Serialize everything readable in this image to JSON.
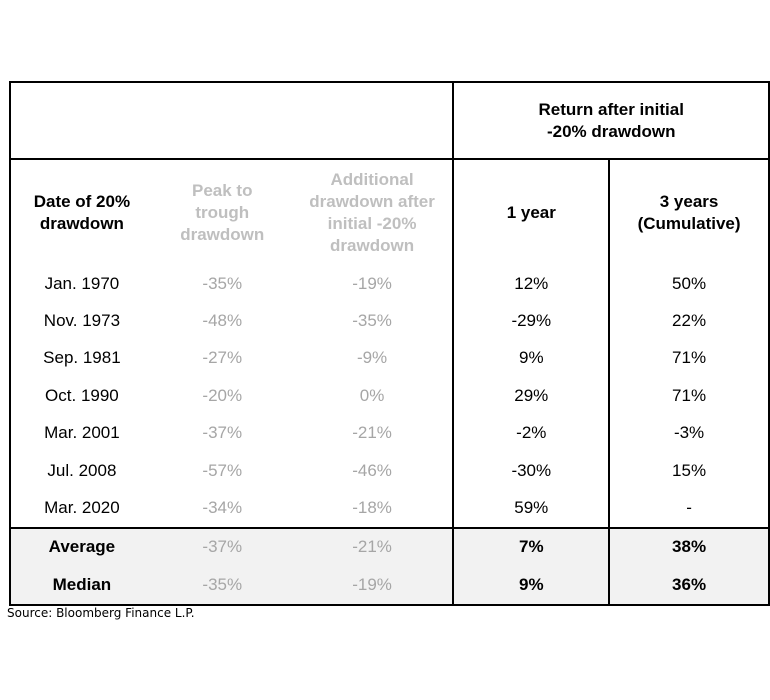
{
  "chart_data": {
    "type": "table",
    "group_header": "Return after initial -20% drawdown",
    "group_header_lines": [
      "Return after initial",
      "-20% drawdown"
    ],
    "columns": [
      "Date of 20% drawdown",
      "Peak to trough drawdown",
      "Additional drawdown after initial -20% drawdown",
      "1 year",
      "3 years (Cumulative)"
    ],
    "column_lines": [
      [
        "Date of 20%",
        "drawdown"
      ],
      [
        "Peak to",
        "trough",
        "drawdown"
      ],
      [
        "Additional",
        "drawdown after",
        "initial -20%",
        "drawdown"
      ],
      [
        "1 year"
      ],
      [
        "3 years",
        "(Cumulative)"
      ]
    ],
    "rows": [
      [
        "Jan. 1970",
        "-35%",
        "-19%",
        "12%",
        "50%"
      ],
      [
        "Nov. 1973",
        "-48%",
        "-35%",
        "-29%",
        "22%"
      ],
      [
        "Sep. 1981",
        "-27%",
        "-9%",
        "9%",
        "71%"
      ],
      [
        "Oct. 1990",
        "-20%",
        "0%",
        "29%",
        "71%"
      ],
      [
        "Mar. 2001",
        "-37%",
        "-21%",
        "-2%",
        "-3%"
      ],
      [
        "Jul. 2008",
        "-57%",
        "-46%",
        "-30%",
        "15%"
      ],
      [
        "Mar. 2020",
        "-34%",
        "-18%",
        "59%",
        "-"
      ]
    ],
    "summary_rows": [
      [
        "Average",
        "-37%",
        "-21%",
        "7%",
        "38%"
      ],
      [
        "Median",
        "-35%",
        "-19%",
        "9%",
        "36%"
      ]
    ]
  },
  "source": "Source: Bloomberg Finance L.P.",
  "colors": {
    "muted_header": "#bfbfbf",
    "muted_value": "#a6a6a6",
    "summary_background": "#f2f2f2",
    "border": "#000000"
  }
}
